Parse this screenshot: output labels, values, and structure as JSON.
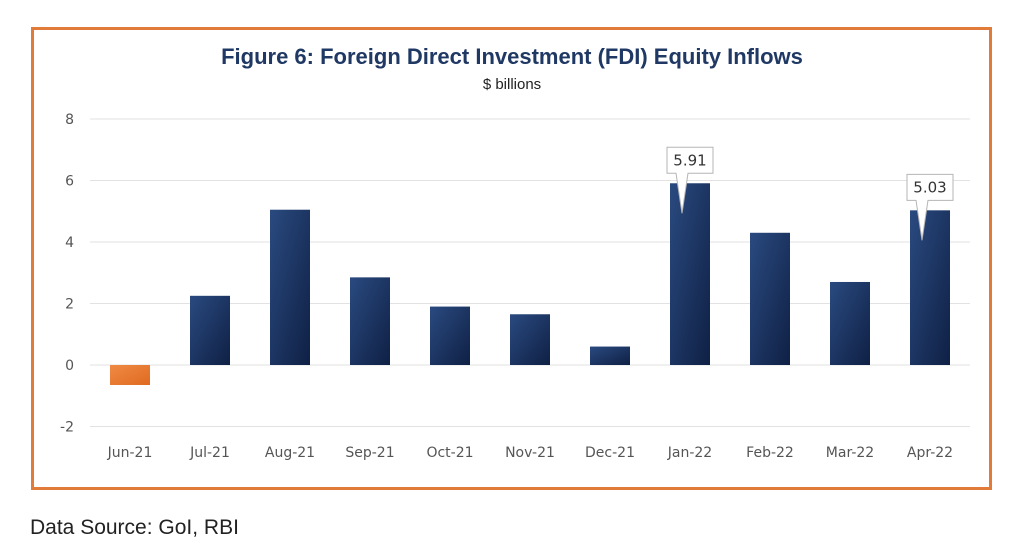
{
  "chart_data": {
    "type": "bar",
    "title": "Figure 6: Foreign Direct Investment (FDI) Equity Inflows",
    "subtitle": "$ billions",
    "categories": [
      "Jun-21",
      "Jul-21",
      "Aug-21",
      "Sep-21",
      "Oct-21",
      "Nov-21",
      "Dec-21",
      "Jan-22",
      "Feb-22",
      "Mar-22",
      "Apr-22"
    ],
    "series": [
      {
        "values": [
          -0.65,
          2.25,
          5.05,
          2.85,
          1.9,
          1.65,
          0.6,
          5.91,
          4.3,
          2.7,
          5.03
        ]
      }
    ],
    "ylim": [
      -2,
      8
    ],
    "yticks": [
      -2,
      0,
      2,
      4,
      6,
      8
    ],
    "data_labels": [
      {
        "category": "Jan-22",
        "text": "5.91"
      },
      {
        "category": "Apr-22",
        "text": "5.03"
      }
    ],
    "colors": {
      "positive": "#1f3864",
      "negative": "#ed7d31",
      "frame": "#e07b3a"
    },
    "grid": true,
    "legend": "none"
  },
  "source": "Data Source: GoI, RBI"
}
